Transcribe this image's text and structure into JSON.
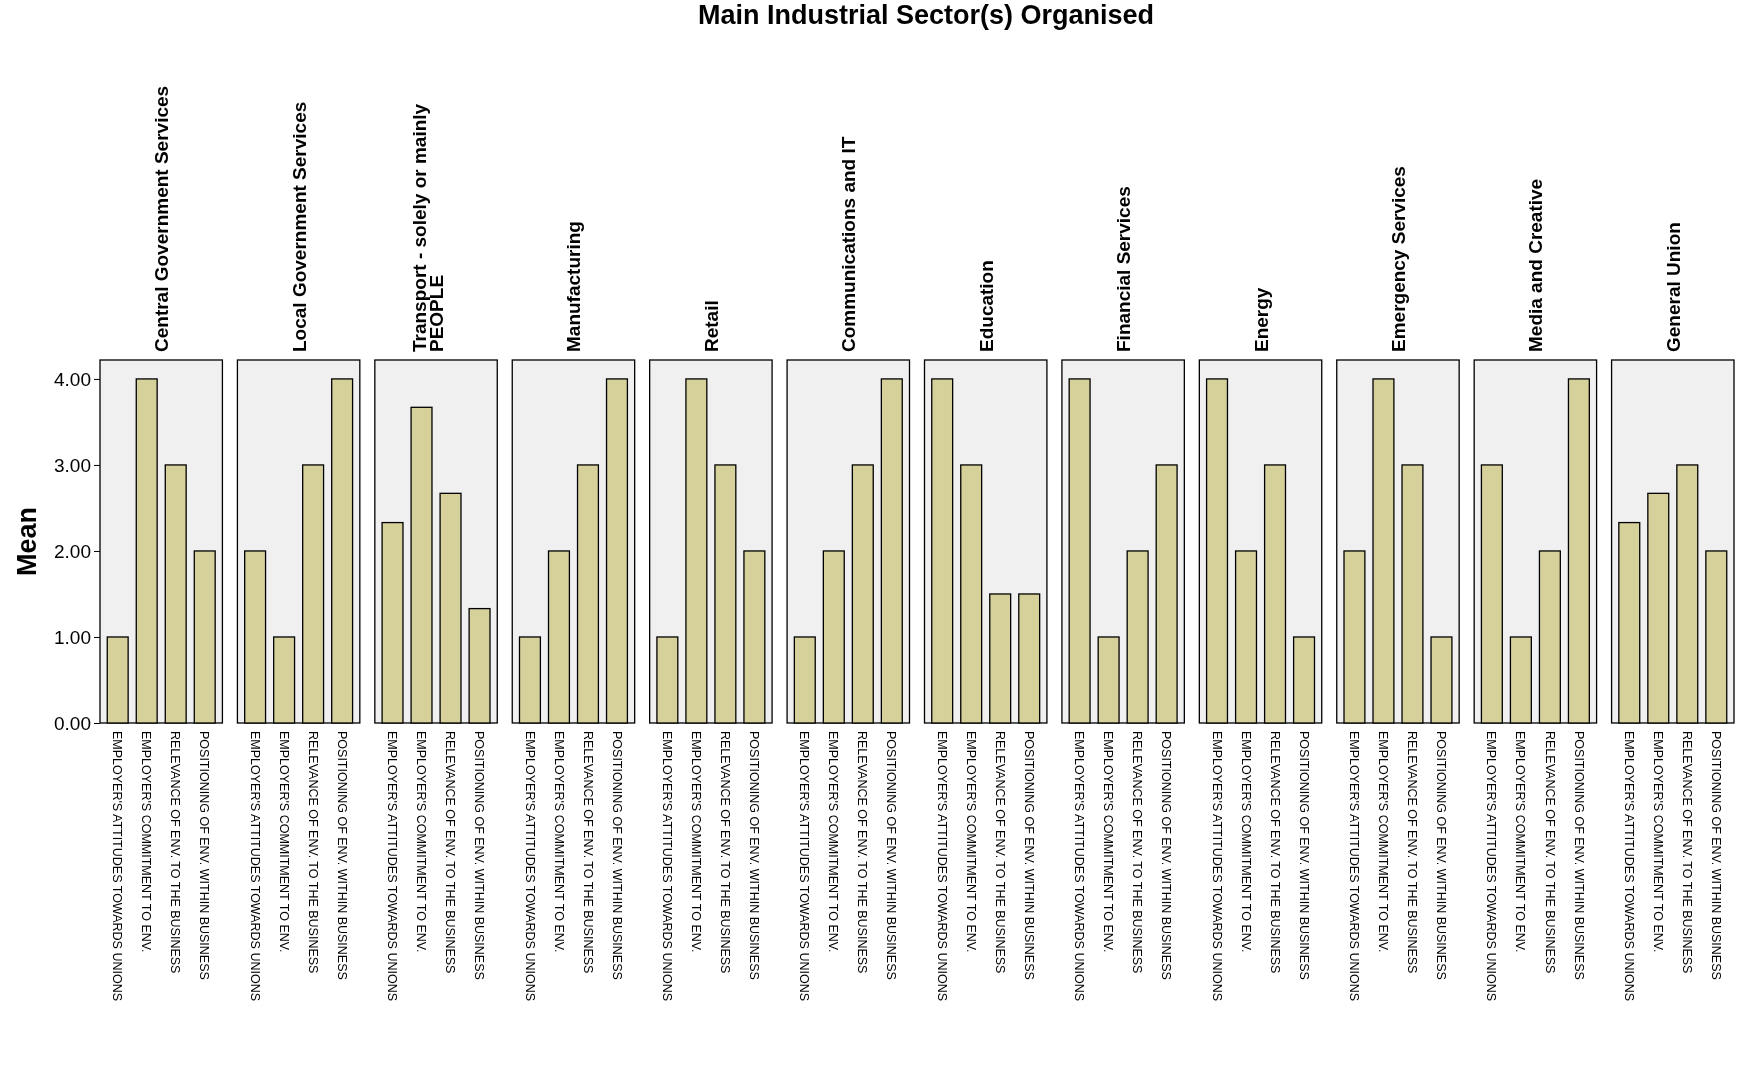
{
  "chart_data": [
    {
      "type": "bar",
      "subtitle": "Central Government Services",
      "ylabel": "Mean",
      "categories": [
        "EMPLOYER'S ATTITUDES TOWARDS UNIONS",
        "EMPLOYER'S COMMITMENT TO ENV.",
        "RELEVANCE OF ENV. TO THE BUSINESS",
        "POSITIONING OF ENV. WITHIN BUSINESS"
      ],
      "values": [
        1,
        4,
        3,
        2
      ],
      "color": "#d6d09a",
      "ylim": [
        0,
        4.22
      ],
      "yticks": [
        {
          "value": 0,
          "label": "0.00"
        },
        {
          "value": 1,
          "label": "1.00"
        },
        {
          "value": 2,
          "label": "2.00"
        },
        {
          "value": 3,
          "label": "3.00"
        },
        {
          "value": 4,
          "label": "4.00"
        }
      ]
    },
    {
      "type": "bar",
      "subtitle": "Local Government Services",
      "categories": [
        "EMPLOYER'S ATTITUDES TOWARDS UNIONS",
        "EMPLOYER'S COMMITMENT TO ENV.",
        "RELEVANCE OF ENV. TO THE BUSINESS",
        "POSITIONING OF ENV. WITHIN BUSINESS"
      ],
      "values": [
        2,
        1,
        3,
        4
      ],
      "color": "#d6d09a",
      "ylim": [
        0,
        4.22
      ],
      "tick_labels": "x"
    },
    {
      "type": "bar",
      "subtitle": "Transport - solely or mainly PEOPLE",
      "categories": [
        "EMPLOYER'S ATTITUDES TOWARDS UNIONS",
        "EMPLOYER'S COMMITMENT TO ENV.",
        "RELEVANCE OF ENV. TO THE BUSINESS",
        "POSITIONING OF ENV. WITHIN BUSINESS"
      ],
      "values": [
        2.33,
        3.67,
        2.67,
        1.33
      ],
      "color": "#d6d09a",
      "ylim": [
        0,
        4.22
      ],
      "tick_labels": "x"
    },
    {
      "type": "bar",
      "subtitle": "Manufacturing",
      "categories": [
        "EMPLOYER'S ATTITUDES TOWARDS UNIONS",
        "EMPLOYER'S COMMITMENT TO ENV.",
        "RELEVANCE OF ENV. TO THE BUSINESS",
        "POSITIONING OF ENV. WITHIN BUSINESS"
      ],
      "values": [
        1,
        2,
        3,
        4
      ],
      "color": "#d6d09a",
      "ylim": [
        0,
        4.22
      ],
      "tick_labels": "x"
    },
    {
      "type": "bar",
      "subtitle": "Retail",
      "categories": [
        "EMPLOYER'S ATTITUDES TOWARDS UNIONS",
        "EMPLOYER'S COMMITMENT TO ENV.",
        "RELEVANCE OF ENV. TO THE BUSINESS",
        "POSITIONING OF ENV. WITHIN BUSINESS"
      ],
      "values": [
        1,
        4,
        3,
        2
      ],
      "color": "#d6d09a",
      "ylim": [
        0,
        4.22
      ],
      "tick_labels": "x"
    },
    {
      "type": "bar",
      "subtitle": "Communications and IT",
      "categories": [
        "EMPLOYER'S ATTITUDES TOWARDS UNIONS",
        "EMPLOYER'S COMMITMENT TO ENV.",
        "RELEVANCE OF ENV. TO THE BUSINESS",
        "POSITIONING OF ENV. WITHIN BUSINESS"
      ],
      "values": [
        1,
        2,
        3,
        4
      ],
      "color": "#d6d09a",
      "ylim": [
        0,
        4.22
      ],
      "tick_labels": "x"
    },
    {
      "type": "bar",
      "title": "Main Industrial Sector(s) Organised",
      "subtitle": "Education",
      "categories": [
        "EMPLOYER'S ATTITUDES TOWARDS UNIONS",
        "EMPLOYER'S COMMITMENT TO ENV.",
        "RELEVANCE OF ENV. TO THE BUSINESS",
        "POSITIONING OF ENV. WITHIN BUSINESS"
      ],
      "values": [
        4,
        3,
        1.5,
        1.5
      ],
      "color": "#d6d09a",
      "ylim": [
        0,
        4.22
      ],
      "tick_labels": "x"
    },
    {
      "type": "bar",
      "subtitle": "Financial Services",
      "categories": [
        "EMPLOYER'S ATTITUDES TOWARDS UNIONS",
        "EMPLOYER'S COMMITMENT TO ENV.",
        "RELEVANCE OF ENV. TO THE BUSINESS",
        "POSITIONING OF ENV. WITHIN BUSINESS"
      ],
      "values": [
        4,
        1,
        2,
        3
      ],
      "color": "#d6d09a",
      "ylim": [
        0,
        4.22
      ],
      "tick_labels": "x"
    },
    {
      "type": "bar",
      "subtitle": "Energy",
      "categories": [
        "EMPLOYER'S ATTITUDES TOWARDS UNIONS",
        "EMPLOYER'S COMMITMENT TO ENV.",
        "RELEVANCE OF ENV. TO THE BUSINESS",
        "POSITIONING OF ENV. WITHIN BUSINESS"
      ],
      "values": [
        4,
        2,
        3,
        1
      ],
      "color": "#d6d09a",
      "ylim": [
        0,
        4.22
      ],
      "tick_labels": "x"
    },
    {
      "type": "bar",
      "subtitle": "Emergency Services",
      "categories": [
        "EMPLOYER'S ATTITUDES TOWARDS UNIONS",
        "EMPLOYER'S COMMITMENT TO ENV.",
        "RELEVANCE OF ENV. TO THE BUSINESS",
        "POSITIONING OF ENV. WITHIN BUSINESS"
      ],
      "values": [
        2,
        4,
        3,
        1
      ],
      "color": "#d6d09a",
      "ylim": [
        0,
        4.22
      ],
      "tick_labels": "x"
    },
    {
      "type": "bar",
      "subtitle": "Media and Creative",
      "categories": [
        "EMPLOYER'S ATTITUDES TOWARDS UNIONS",
        "EMPLOYER'S COMMITMENT TO ENV.",
        "RELEVANCE OF ENV. TO THE BUSINESS",
        "POSITIONING OF ENV. WITHIN BUSINESS"
      ],
      "values": [
        3,
        1,
        2,
        4
      ],
      "color": "#d6d09a",
      "ylim": [
        0,
        4.22
      ],
      "tick_labels": "x"
    },
    {
      "type": "bar",
      "subtitle": "General Union",
      "categories": [
        "EMPLOYER'S ATTITUDES TOWARDS UNIONS",
        "EMPLOYER'S COMMITMENT TO ENV.",
        "RELEVANCE OF ENV. TO THE BUSINESS",
        "POSITIONING OF ENV. WITHIN BUSINESS"
      ],
      "values": [
        2.33,
        2.67,
        3,
        2
      ],
      "color": "#d6d09a",
      "ylim": [
        0,
        4.22
      ],
      "tick_labels": "x"
    }
  ]
}
